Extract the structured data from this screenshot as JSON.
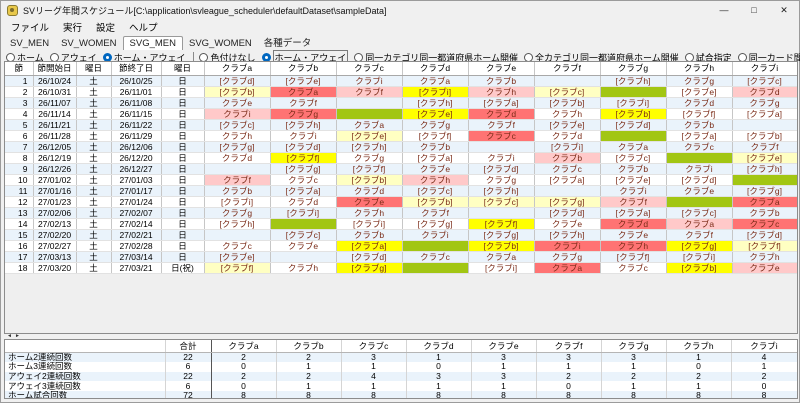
{
  "window": {
    "title": "SVリーグ年間スケジュール[C:\\application\\svleague_scheduler\\defaultDataset\\sampleData]",
    "minimize": "—",
    "maximize": "□",
    "close": "✕"
  },
  "menu": [
    "ファイル",
    "実行",
    "設定",
    "ヘルプ"
  ],
  "tabs": [
    {
      "label": "SV_MEN",
      "active": false
    },
    {
      "label": "SV_WOMEN",
      "active": false
    },
    {
      "label": "SVG_MEN",
      "active": true
    },
    {
      "label": "SVG_WOMEN",
      "active": false
    },
    {
      "label": "各種データ",
      "active": false
    }
  ],
  "controls": {
    "view_radios": [
      {
        "label": "ホーム",
        "selected": false
      },
      {
        "label": "アウェイ",
        "selected": false
      },
      {
        "label": "ホーム・アウェイ",
        "selected": true
      }
    ],
    "color_radios": [
      {
        "label": "色付けなし",
        "selected": false
      },
      {
        "label": "ホーム・アウェイ",
        "selected": true,
        "focused": true
      },
      {
        "label": "同一カテゴリ同一都道府県ホーム開催",
        "selected": false
      },
      {
        "label": "全カテゴリ同一都道府県ホーム開催",
        "selected": false
      },
      {
        "label": "試合指定",
        "selected": false
      },
      {
        "label": "同一カード間隔",
        "selected": false
      },
      {
        "label": "交流戦",
        "selected": false
      }
    ],
    "buttons": [
      "Excelファイル出力",
      "アウェイ一括固定"
    ]
  },
  "schedule": {
    "date_headers": [
      "節",
      "節開始日",
      "曜日",
      "節終了日",
      "曜日"
    ],
    "clubs": [
      "クラブa",
      "クラブb",
      "クラブc",
      "クラブd",
      "クラブe",
      "クラブf",
      "クラブg",
      "クラブh",
      "クラブi"
    ],
    "colors": {
      "pink_2streak": "#ffc9c9",
      "red_3streak": "#ff7373",
      "cream_2streak": "#ffffc2",
      "yellow_3streak": "#ffff00",
      "bye_green": "#a2c613",
      "row_stripe": "#eaf3fb"
    },
    "rows": [
      {
        "no": 1,
        "start": "26/10/24",
        "sd": "土",
        "end": "26/10/25",
        "ed": "日",
        "cells": [
          [
            "[クラブd]",
            "c"
          ],
          [
            "[クラブe]",
            ""
          ],
          [
            "クラブi",
            "p"
          ],
          [
            "クラブa",
            ""
          ],
          [
            "クラブb",
            "p"
          ],
          [
            "",
            "g"
          ],
          [
            "[クラブh]",
            ""
          ],
          [
            "クラブg",
            ""
          ],
          [
            "[クラブc]",
            ""
          ]
        ]
      },
      {
        "no": 2,
        "start": "26/10/31",
        "sd": "土",
        "end": "26/11/01",
        "ed": "日",
        "cells": [
          [
            "[クラブb]",
            "c"
          ],
          [
            "クラブa",
            "r"
          ],
          [
            "クラブf",
            "p"
          ],
          [
            "[クラブi]",
            "y"
          ],
          [
            "クラブh",
            "p"
          ],
          [
            "[クラブc]",
            "c"
          ],
          [
            "",
            "g"
          ],
          [
            "[クラブe]",
            ""
          ],
          [
            "クラブd",
            "p"
          ]
        ]
      },
      {
        "no": 3,
        "start": "26/11/07",
        "sd": "土",
        "end": "26/11/08",
        "ed": "日",
        "cells": [
          [
            "クラブe",
            "p"
          ],
          [
            "クラブf",
            "r"
          ],
          [
            "",
            "g"
          ],
          [
            "[クラブh]",
            "y"
          ],
          [
            "[クラブa]",
            ""
          ],
          [
            "[クラブb]",
            "c"
          ],
          [
            "[クラブi]",
            "y"
          ],
          [
            "クラブd",
            ""
          ],
          [
            "クラブg",
            "p"
          ]
        ]
      },
      {
        "no": 4,
        "start": "26/11/14",
        "sd": "土",
        "end": "26/11/15",
        "ed": "日",
        "cells": [
          [
            "クラブi",
            "p"
          ],
          [
            "クラブg",
            "r"
          ],
          [
            "",
            "g"
          ],
          [
            "[クラブe]",
            "y"
          ],
          [
            "クラブd",
            "r"
          ],
          [
            "クラブh",
            ""
          ],
          [
            "[クラブb]",
            "y"
          ],
          [
            "[クラブf]",
            ""
          ],
          [
            "[クラブa]",
            ""
          ]
        ]
      },
      {
        "no": 5,
        "start": "26/11/21",
        "sd": "土",
        "end": "26/11/22",
        "ed": "日",
        "cells": [
          [
            "[クラブc]",
            ""
          ],
          [
            "[クラブh]",
            ""
          ],
          [
            "クラブa",
            ""
          ],
          [
            "クラブg",
            ""
          ],
          [
            "クラブf",
            "r"
          ],
          [
            "[クラブe]",
            ""
          ],
          [
            "[クラブd]",
            "y"
          ],
          [
            "クラブb",
            ""
          ],
          [
            "",
            "g"
          ]
        ]
      },
      {
        "no": 6,
        "start": "26/11/28",
        "sd": "土",
        "end": "26/11/29",
        "ed": "日",
        "cells": [
          [
            "クラブh",
            ""
          ],
          [
            "クラブi",
            ""
          ],
          [
            "[クラブe]",
            "c"
          ],
          [
            "[クラブf]",
            ""
          ],
          [
            "クラブc",
            "r"
          ],
          [
            "クラブd",
            ""
          ],
          [
            "",
            "g"
          ],
          [
            "[クラブa]",
            ""
          ],
          [
            "[クラブb]",
            ""
          ]
        ]
      },
      {
        "no": 7,
        "start": "26/12/05",
        "sd": "土",
        "end": "26/12/06",
        "ed": "日",
        "cells": [
          [
            "[クラブg]",
            ""
          ],
          [
            "[クラブd]",
            "y"
          ],
          [
            "[クラブh]",
            "c"
          ],
          [
            "クラブb",
            ""
          ],
          [
            "",
            "g"
          ],
          [
            "[クラブi]",
            ""
          ],
          [
            "クラブa",
            ""
          ],
          [
            "クラブc",
            ""
          ],
          [
            "クラブf",
            ""
          ]
        ]
      },
      {
        "no": 8,
        "start": "26/12/19",
        "sd": "土",
        "end": "26/12/20",
        "ed": "日",
        "cells": [
          [
            "クラブd",
            ""
          ],
          [
            "[クラブf]",
            "y"
          ],
          [
            "クラブg",
            ""
          ],
          [
            "[クラブa]",
            ""
          ],
          [
            "クラブi",
            ""
          ],
          [
            "クラブb",
            "p"
          ],
          [
            "[クラブc]",
            ""
          ],
          [
            "",
            "g"
          ],
          [
            "[クラブe]",
            "c"
          ]
        ]
      },
      {
        "no": 9,
        "start": "26/12/26",
        "sd": "土",
        "end": "26/12/27",
        "ed": "日",
        "cells": [
          [
            "",
            "g"
          ],
          [
            "[クラブg]",
            "y"
          ],
          [
            "[クラブf]",
            "c"
          ],
          [
            "クラブe",
            "p"
          ],
          [
            "[クラブd]",
            ""
          ],
          [
            "クラブc",
            "p"
          ],
          [
            "クラブb",
            ""
          ],
          [
            "クラブi",
            ""
          ],
          [
            "[クラブh]",
            "c"
          ]
        ]
      },
      {
        "no": 10,
        "start": "27/01/02",
        "sd": "土",
        "end": "27/01/03",
        "ed": "日",
        "cells": [
          [
            "クラブf",
            "p"
          ],
          [
            "クラブc",
            ""
          ],
          [
            "[クラブb]",
            "c"
          ],
          [
            "クラブh",
            "p"
          ],
          [
            "クラブg",
            ""
          ],
          [
            "[クラブa]",
            ""
          ],
          [
            "[クラブe]",
            ""
          ],
          [
            "[クラブd]",
            ""
          ],
          [
            "",
            "g"
          ]
        ]
      },
      {
        "no": 11,
        "start": "27/01/16",
        "sd": "土",
        "end": "27/01/17",
        "ed": "日",
        "cells": [
          [
            "クラブb",
            "p"
          ],
          [
            "[クラブa]",
            ""
          ],
          [
            "クラブd",
            "r"
          ],
          [
            "[クラブc]",
            "c"
          ],
          [
            "[クラブh]",
            "c"
          ],
          [
            "",
            "g"
          ],
          [
            "クラブi",
            "p"
          ],
          [
            "クラブe",
            ""
          ],
          [
            "[クラブg]",
            ""
          ]
        ]
      },
      {
        "no": 12,
        "start": "27/01/23",
        "sd": "土",
        "end": "27/01/24",
        "ed": "日",
        "cells": [
          [
            "[クラブi]",
            ""
          ],
          [
            "クラブd",
            ""
          ],
          [
            "クラブe",
            "r"
          ],
          [
            "[クラブb]",
            "c"
          ],
          [
            "[クラブc]",
            "c"
          ],
          [
            "[クラブg]",
            "c"
          ],
          [
            "クラブf",
            "p"
          ],
          [
            "",
            "g"
          ],
          [
            "クラブa",
            "r"
          ]
        ]
      },
      {
        "no": 13,
        "start": "27/02/06",
        "sd": "土",
        "end": "27/02/07",
        "ed": "日",
        "cells": [
          [
            "クラブg",
            ""
          ],
          [
            "[クラブi]",
            ""
          ],
          [
            "クラブh",
            "r"
          ],
          [
            "クラブf",
            ""
          ],
          [
            "",
            "g"
          ],
          [
            "[クラブd]",
            "c"
          ],
          [
            "[クラブa]",
            ""
          ],
          [
            "[クラブc]",
            ""
          ],
          [
            "クラブb",
            "r"
          ]
        ]
      },
      {
        "no": 14,
        "start": "27/02/13",
        "sd": "土",
        "end": "27/02/14",
        "ed": "日",
        "cells": [
          [
            "[クラブh]",
            ""
          ],
          [
            "",
            "g"
          ],
          [
            "[クラブi]",
            ""
          ],
          [
            "[クラブg]",
            ""
          ],
          [
            "[クラブf]",
            "y"
          ],
          [
            "クラブe",
            ""
          ],
          [
            "クラブd",
            "r"
          ],
          [
            "クラブa",
            "p"
          ],
          [
            "クラブc",
            "r"
          ]
        ]
      },
      {
        "no": 15,
        "start": "27/02/20",
        "sd": "土",
        "end": "27/02/21",
        "ed": "日",
        "cells": [
          [
            "",
            "g"
          ],
          [
            "[クラブc]",
            ""
          ],
          [
            "クラブb",
            ""
          ],
          [
            "クラブi",
            ""
          ],
          [
            "[クラブg]",
            "y"
          ],
          [
            "[クラブh]",
            ""
          ],
          [
            "クラブe",
            "r"
          ],
          [
            "クラブf",
            "p"
          ],
          [
            "[クラブd]",
            "c"
          ]
        ]
      },
      {
        "no": 16,
        "start": "27/02/27",
        "sd": "土",
        "end": "27/02/28",
        "ed": "日",
        "cells": [
          [
            "クラブc",
            ""
          ],
          [
            "クラブe",
            ""
          ],
          [
            "[クラブa]",
            "y"
          ],
          [
            "",
            "g"
          ],
          [
            "[クラブb]",
            "y"
          ],
          [
            "クラブi",
            "r"
          ],
          [
            "クラブh",
            "r"
          ],
          [
            "[クラブg]",
            "y"
          ],
          [
            "[クラブf]",
            "c"
          ]
        ]
      },
      {
        "no": 17,
        "start": "27/03/13",
        "sd": "土",
        "end": "27/03/14",
        "ed": "日",
        "cells": [
          [
            "[クラブe]",
            "c"
          ],
          [
            "",
            "g"
          ],
          [
            "[クラブd]",
            "y"
          ],
          [
            "クラブc",
            ""
          ],
          [
            "クラブa",
            ""
          ],
          [
            "クラブg",
            "r"
          ],
          [
            "[クラブf]",
            ""
          ],
          [
            "[クラブi]",
            "y"
          ],
          [
            "クラブh",
            "p"
          ]
        ]
      },
      {
        "no": 18,
        "start": "27/03/20",
        "sd": "土",
        "end": "27/03/21",
        "ed": "日(祝)",
        "cells": [
          [
            "[クラブf]",
            "c"
          ],
          [
            "クラブh",
            ""
          ],
          [
            "[クラブg]",
            "y"
          ],
          [
            "",
            "g"
          ],
          [
            "[クラブi]",
            ""
          ],
          [
            "クラブa",
            "r"
          ],
          [
            "クラブc",
            ""
          ],
          [
            "[クラブb]",
            "y"
          ],
          [
            "クラブe",
            "p"
          ]
        ]
      }
    ]
  },
  "summary": {
    "total_label": "合計",
    "clubs": [
      "クラブa",
      "クラブb",
      "クラブc",
      "クラブd",
      "クラブe",
      "クラブf",
      "クラブg",
      "クラブh",
      "クラブi"
    ],
    "rows": [
      {
        "label": "ホーム2連続回数",
        "total": 22,
        "values": [
          2,
          2,
          3,
          1,
          3,
          3,
          3,
          1,
          4
        ]
      },
      {
        "label": "ホーム3連続回数",
        "total": 6,
        "values": [
          0,
          1,
          1,
          0,
          1,
          1,
          1,
          0,
          1
        ]
      },
      {
        "label": "アウェイ2連続回数",
        "total": 22,
        "values": [
          2,
          2,
          4,
          3,
          3,
          2,
          2,
          2,
          2
        ]
      },
      {
        "label": "アウェイ3連続回数",
        "total": 6,
        "values": [
          0,
          1,
          1,
          1,
          1,
          0,
          1,
          1,
          0
        ]
      },
      {
        "label": "ホーム試合回数",
        "total": 72,
        "values": [
          8,
          8,
          8,
          8,
          8,
          8,
          8,
          8,
          8
        ]
      }
    ]
  }
}
